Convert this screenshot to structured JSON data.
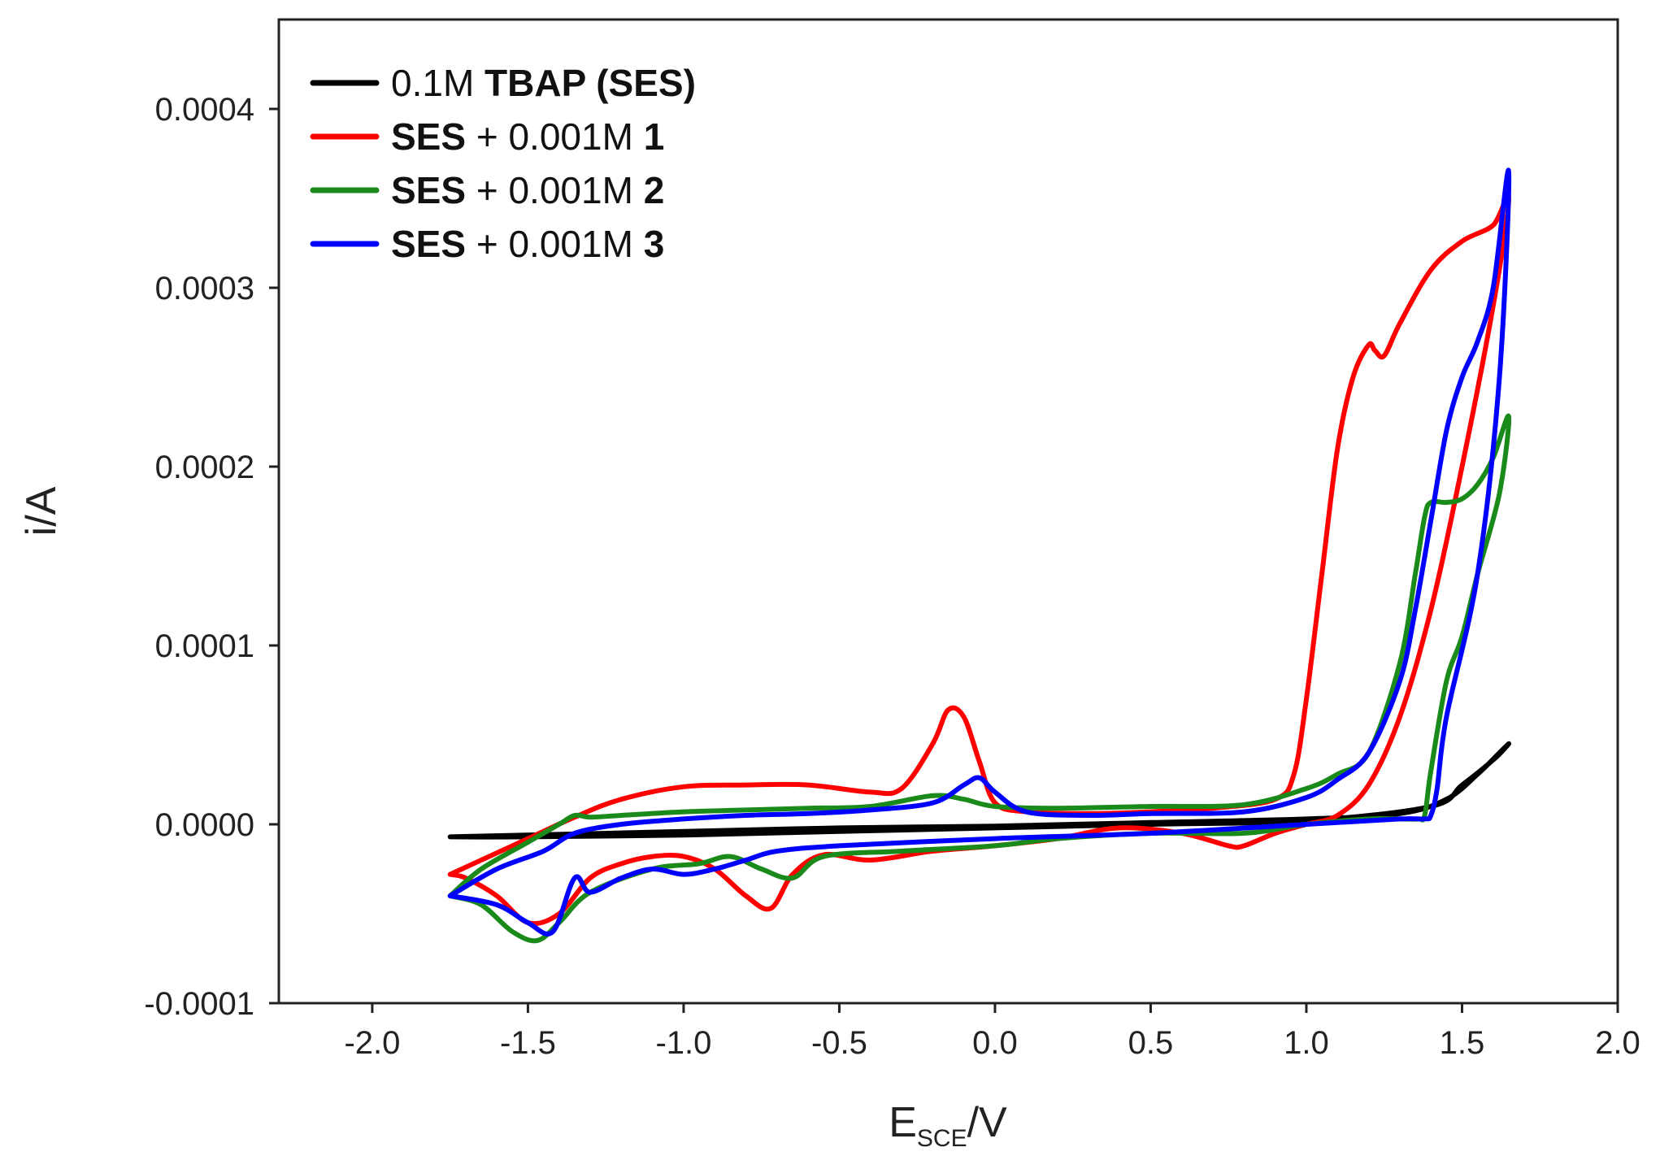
{
  "chart_data": {
    "type": "line",
    "title": "",
    "xlabel": "E",
    "xlabel_sub": "SCE",
    "xlabel_suffix": "/V",
    "ylabel": "i/A",
    "xlim": [
      -2.3,
      2.0
    ],
    "ylim": [
      -0.0001,
      0.00045
    ],
    "xticks": [
      -2.0,
      -1.5,
      -1.0,
      -0.5,
      0.0,
      0.5,
      1.0,
      1.5,
      2.0
    ],
    "xtick_labels": [
      "-2.0",
      "-1.5",
      "-1.0",
      "-0.5",
      "0.0",
      "0.5",
      "1.0",
      "1.5",
      "2.0"
    ],
    "yticks": [
      -0.0001,
      0.0,
      0.0001,
      0.0002,
      0.0003,
      0.0004
    ],
    "ytick_labels": [
      "-0.0001",
      "0.0000",
      "0.0001",
      "0.0002",
      "0.0003",
      "0.0004"
    ],
    "grid": false,
    "legend_position": "top-left",
    "legend": [
      {
        "parts": [
          {
            "text": "0.1M ",
            "bold": false
          },
          {
            "text": "TBAP (SES)",
            "bold": true
          }
        ]
      },
      {
        "parts": [
          {
            "text": "SES",
            "bold": true
          },
          {
            "text": " + 0.001M ",
            "bold": false
          },
          {
            "text": "1",
            "bold": true
          }
        ]
      },
      {
        "parts": [
          {
            "text": "SES",
            "bold": true
          },
          {
            "text": " + 0.001M ",
            "bold": false
          },
          {
            "text": "2",
            "bold": true
          }
        ]
      },
      {
        "parts": [
          {
            "text": "SES",
            "bold": true
          },
          {
            "text": " + 0.001M ",
            "bold": false
          },
          {
            "text": "3",
            "bold": true
          }
        ]
      }
    ],
    "series": [
      {
        "name": "0.1M TBAP (SES)",
        "color": "#000000",
        "x": [
          -1.75,
          -1.0,
          -0.5,
          0.0,
          0.5,
          1.0,
          1.3,
          1.45,
          1.55,
          1.62,
          1.65,
          1.6,
          1.5,
          1.4,
          1.0,
          0.5,
          0.0,
          -0.5,
          -1.0,
          -1.5,
          -1.75
        ],
        "y": [
          -7e-06,
          -4e-06,
          -2e-06,
          -1e-06,
          1e-06,
          3e-06,
          6e-06,
          1.4e-05,
          2.8e-05,
          4e-05,
          4.5e-05,
          3.6e-05,
          2.2e-05,
          1e-05,
          2e-06,
          0.0,
          -2e-06,
          -4e-06,
          -6e-06,
          -7e-06,
          -7e-06
        ]
      },
      {
        "name": "SES + 0.001M 1",
        "color": "#ff0000",
        "x": [
          -1.75,
          -1.65,
          -1.5,
          -1.35,
          -1.2,
          -1.0,
          -0.8,
          -0.6,
          -0.4,
          -0.3,
          -0.2,
          -0.15,
          -0.1,
          -0.05,
          0.0,
          0.1,
          0.3,
          0.5,
          0.7,
          0.9,
          0.96,
          1.0,
          1.05,
          1.1,
          1.15,
          1.2,
          1.22,
          1.25,
          1.3,
          1.4,
          1.5,
          1.6,
          1.65,
          1.6,
          1.5,
          1.4,
          1.3,
          1.2,
          1.1,
          1.0,
          0.9,
          0.8,
          0.75,
          0.6,
          0.4,
          0.2,
          0.0,
          -0.2,
          -0.4,
          -0.55,
          -0.65,
          -0.72,
          -0.8,
          -0.9,
          -1.0,
          -1.1,
          -1.2,
          -1.3,
          -1.4,
          -1.5,
          -1.6,
          -1.7,
          -1.75
        ],
        "y": [
          -2.8e-05,
          -2e-05,
          -8e-06,
          4e-06,
          1.4e-05,
          2.1e-05,
          2.2e-05,
          2.2e-05,
          1.8e-05,
          2e-05,
          4.5e-05,
          6.4e-05,
          6e-05,
          3.5e-05,
          1.2e-05,
          7e-06,
          6e-06,
          7e-06,
          9e-06,
          1.4e-05,
          2.8e-05,
          7e-05,
          0.00014,
          0.00021,
          0.00025,
          0.000268,
          0.000265,
          0.000262,
          0.00028,
          0.00031,
          0.000326,
          0.000335,
          0.00035,
          0.00029,
          0.0002,
          0.00012,
          6e-05,
          2.2e-05,
          5e-06,
          0.0,
          -5e-06,
          -1.2e-05,
          -1.2e-05,
          -5e-06,
          -2e-06,
          -8e-06,
          -1.2e-05,
          -1.5e-05,
          -2e-05,
          -1.7e-05,
          -2.8e-05,
          -4.7e-05,
          -4e-05,
          -2.5e-05,
          -1.8e-05,
          -1.8e-05,
          -2.2e-05,
          -3e-05,
          -5e-05,
          -5.5e-05,
          -4e-05,
          -3e-05,
          -2.8e-05
        ]
      },
      {
        "name": "SES + 0.001M 2",
        "color": "#1a8a1a",
        "x": [
          -1.75,
          -1.65,
          -1.5,
          -1.4,
          -1.35,
          -1.3,
          -1.2,
          -1.0,
          -0.8,
          -0.6,
          -0.4,
          -0.2,
          -0.1,
          0.0,
          0.2,
          0.5,
          0.8,
          1.0,
          1.1,
          1.2,
          1.3,
          1.35,
          1.38,
          1.4,
          1.45,
          1.5,
          1.55,
          1.6,
          1.65,
          1.62,
          1.55,
          1.5,
          1.45,
          1.4,
          1.38,
          1.36,
          1.3,
          1.2,
          1.0,
          0.8,
          0.5,
          0.2,
          0.0,
          -0.3,
          -0.55,
          -0.65,
          -0.75,
          -0.85,
          -0.95,
          -1.1,
          -1.3,
          -1.4,
          -1.47,
          -1.55,
          -1.65,
          -1.75
        ],
        "y": [
          -4e-05,
          -2.5e-05,
          -1e-05,
          0.0,
          5e-06,
          4e-06,
          5e-06,
          7e-06,
          8e-06,
          9e-06,
          1e-05,
          1.6e-05,
          1.4e-05,
          1e-05,
          9e-06,
          1e-05,
          1.1e-05,
          2e-05,
          2.8e-05,
          4e-05,
          9e-05,
          0.00014,
          0.000172,
          0.00018,
          0.00018,
          0.000182,
          0.00019,
          0.000205,
          0.000228,
          0.000185,
          0.00014,
          0.000105,
          8e-05,
          3e-05,
          5e-06,
          3e-06,
          3e-06,
          3e-06,
          0.0,
          -5e-06,
          -5e-06,
          -8e-06,
          -1.2e-05,
          -1.5e-05,
          -1.8e-05,
          -3e-05,
          -2.5e-05,
          -1.8e-05,
          -2.2e-05,
          -2.5e-05,
          -3.8e-05,
          -5.5e-05,
          -6.5e-05,
          -6e-05,
          -4.5e-05,
          -4e-05
        ]
      },
      {
        "name": "SES + 0.001M 3",
        "color": "#0000ff",
        "x": [
          -1.75,
          -1.6,
          -1.45,
          -1.35,
          -1.2,
          -1.0,
          -0.8,
          -0.6,
          -0.4,
          -0.2,
          -0.1,
          -0.05,
          0.0,
          0.1,
          0.3,
          0.5,
          0.8,
          1.0,
          1.1,
          1.2,
          1.3,
          1.35,
          1.4,
          1.45,
          1.5,
          1.55,
          1.6,
          1.65,
          1.62,
          1.55,
          1.45,
          1.42,
          1.4,
          1.38,
          1.3,
          1.0,
          0.5,
          0.0,
          -0.5,
          -0.7,
          -0.8,
          -0.9,
          -1.0,
          -1.1,
          -1.2,
          -1.3,
          -1.35,
          -1.42,
          -1.5,
          -1.6,
          -1.75
        ],
        "y": [
          -4e-05,
          -2.5e-05,
          -1.5e-05,
          -5e-06,
          0.0,
          3e-06,
          5e-06,
          6e-06,
          8e-06,
          1.2e-05,
          2.2e-05,
          2.6e-05,
          1.8e-05,
          7e-06,
          5e-06,
          6e-06,
          7e-06,
          1.5e-05,
          2.5e-05,
          4e-05,
          8e-05,
          0.00012,
          0.00017,
          0.00022,
          0.00025,
          0.00027,
          0.0003,
          0.000365,
          0.00025,
          0.00014,
          6e-05,
          2e-05,
          5e-06,
          3e-06,
          3e-06,
          0.0,
          -5e-06,
          -8e-06,
          -1.2e-05,
          -1.5e-05,
          -2e-05,
          -2.5e-05,
          -2.8e-05,
          -2.5e-05,
          -3e-05,
          -3.8e-05,
          -3e-05,
          -6e-05,
          -5.5e-05,
          -4.5e-05,
          -4e-05
        ]
      }
    ]
  }
}
